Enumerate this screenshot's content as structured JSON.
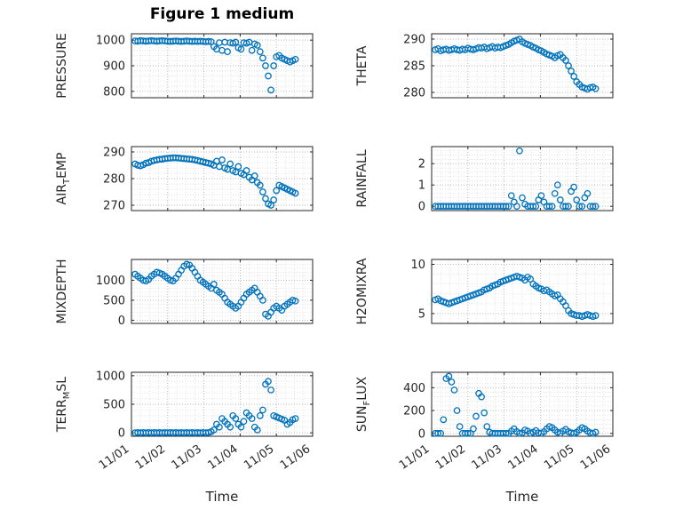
{
  "figure": {
    "title": "Figure 1 medium",
    "marker": "open-circle",
    "marker_color": "#0072BD",
    "axis_color": "#262626",
    "background": "#ffffff",
    "grid": "dotted"
  },
  "time_axis": {
    "label": "Time",
    "range": [
      0,
      5
    ],
    "ticks": [
      0,
      1,
      2,
      3,
      4,
      5
    ],
    "tick_labels": [
      "11/01",
      "11/02",
      "11/03",
      "11/04",
      "11/05",
      "11/06"
    ],
    "x": [
      0.1,
      0.175,
      0.25,
      0.325,
      0.4,
      0.475,
      0.55,
      0.625,
      0.7,
      0.775,
      0.85,
      0.925,
      1.0,
      1.075,
      1.15,
      1.225,
      1.3,
      1.375,
      1.45,
      1.525,
      1.6,
      1.675,
      1.75,
      1.825,
      1.9,
      1.975,
      2.05,
      2.125,
      2.2,
      2.275,
      2.35,
      2.425,
      2.5,
      2.575,
      2.65,
      2.725,
      2.8,
      2.875,
      2.95,
      3.025,
      3.1,
      3.175,
      3.25,
      3.325,
      3.4,
      3.475,
      3.55,
      3.625,
      3.7,
      3.775,
      3.85,
      3.925,
      4.0,
      4.075,
      4.15,
      4.225,
      4.3,
      4.375,
      4.45,
      4.525
    ]
  },
  "chart_data": [
    {
      "type": "scatter",
      "name": "PRESSURE",
      "ylabel": "PRESSURE",
      "ylabel_parts": [
        {
          "text": "PRESSURE"
        }
      ],
      "yticks": [
        800,
        900,
        1000
      ],
      "ylim": [
        775,
        1025
      ],
      "values": [
        997,
        996,
        998,
        997,
        996,
        997,
        998,
        997,
        996,
        997,
        998,
        997,
        996,
        995,
        996,
        997,
        996,
        995,
        996,
        997,
        996,
        995,
        996,
        995,
        996,
        995,
        994,
        995,
        994,
        975,
        965,
        990,
        960,
        992,
        955,
        990,
        988,
        992,
        970,
        965,
        990,
        988,
        992,
        960,
        985,
        980,
        955,
        930,
        900,
        860,
        805,
        900,
        935,
        940,
        930,
        925,
        920,
        915,
        920,
        925
      ]
    },
    {
      "type": "scatter",
      "name": "THETA",
      "ylabel": "THETA",
      "ylabel_parts": [
        {
          "text": "THETA"
        }
      ],
      "yticks": [
        280,
        285,
        290
      ],
      "ylim": [
        279,
        291
      ],
      "values": [
        288,
        288.2,
        287.8,
        288,
        288.1,
        287.9,
        288,
        288.2,
        288,
        287.9,
        288.1,
        288,
        288.3,
        288.1,
        288,
        288.2,
        288.4,
        288.3,
        288.5,
        288.2,
        288.4,
        288.6,
        288.3,
        288.5,
        288.4,
        288.6,
        288.8,
        289,
        289.3,
        289.6,
        289.8,
        290,
        289.5,
        289.2,
        289,
        288.8,
        288.5,
        288.3,
        288,
        287.8,
        287.5,
        287.2,
        287,
        286.8,
        286.5,
        286.9,
        287.1,
        286.5,
        286,
        285,
        284,
        283,
        282,
        281.5,
        281,
        280.8,
        280.6,
        280.9,
        281,
        280.7
      ]
    },
    {
      "type": "scatter",
      "name": "AIR_TEMP",
      "ylabel": "AIR_TEMP",
      "ylabel_parts": [
        {
          "text": "AIR"
        },
        {
          "text": "T",
          "sub": true
        },
        {
          "text": "EMP"
        }
      ],
      "yticks": [
        270,
        280,
        290
      ],
      "ylim": [
        268,
        292
      ],
      "values": [
        285.5,
        285,
        284.8,
        285.2,
        285.8,
        286,
        286.5,
        286.8,
        287,
        287.2,
        287.3,
        287.5,
        287.6,
        287.7,
        287.8,
        287.8,
        287.7,
        287.6,
        287.5,
        287.4,
        287.3,
        287.2,
        287,
        286.8,
        286.5,
        286.3,
        286,
        285.8,
        285.5,
        285,
        286.5,
        284.5,
        287,
        284,
        283.5,
        285.5,
        283,
        282.5,
        284.5,
        282,
        281.5,
        283,
        280.5,
        279.5,
        281,
        278.5,
        277.5,
        275,
        272.5,
        270.5,
        270,
        272,
        275.5,
        277.5,
        277,
        276.5,
        276,
        275.5,
        275,
        274.5
      ]
    },
    {
      "type": "scatter",
      "name": "RAINFALL",
      "ylabel": "RAINFALL",
      "ylabel_parts": [
        {
          "text": "RAINFALL"
        }
      ],
      "yticks": [
        0,
        1,
        2
      ],
      "ylim": [
        -0.2,
        2.8
      ],
      "values": [
        0,
        0,
        0,
        0,
        0,
        0,
        0,
        0,
        0,
        0,
        0,
        0,
        0,
        0,
        0,
        0,
        0,
        0,
        0,
        0,
        0,
        0,
        0,
        0,
        0,
        0,
        0,
        0,
        0.5,
        0.2,
        0,
        2.6,
        0.4,
        0.1,
        0,
        0,
        0,
        0,
        0.3,
        0.5,
        0.2,
        0,
        0,
        0,
        0.6,
        1,
        0.3,
        0,
        0,
        0,
        0.7,
        0.9,
        0.3,
        0,
        0,
        0.4,
        0.6,
        0,
        0,
        0
      ]
    },
    {
      "type": "scatter",
      "name": "MIXDEPTH",
      "ylabel": "MIXDEPTH",
      "ylabel_parts": [
        {
          "text": "MIXDEPTH"
        }
      ],
      "yticks": [
        0,
        500,
        1000
      ],
      "ylim": [
        -80,
        1520
      ],
      "values": [
        1150,
        1100,
        1050,
        1000,
        980,
        1020,
        1100,
        1150,
        1200,
        1180,
        1150,
        1100,
        1050,
        1000,
        980,
        1050,
        1150,
        1250,
        1350,
        1400,
        1380,
        1300,
        1200,
        1100,
        1000,
        950,
        900,
        850,
        800,
        900,
        750,
        700,
        650,
        550,
        450,
        400,
        350,
        300,
        350,
        450,
        550,
        650,
        700,
        750,
        800,
        700,
        600,
        500,
        150,
        100,
        200,
        300,
        350,
        300,
        250,
        350,
        400,
        450,
        500,
        480
      ]
    },
    {
      "type": "scatter",
      "name": "H2OMIXRA",
      "ylabel": "H2OMIXRA",
      "ylabel_parts": [
        {
          "text": "H2OMIXRA"
        }
      ],
      "yticks": [
        5,
        10
      ],
      "ylim": [
        4,
        10.5
      ],
      "values": [
        6.4,
        6.5,
        6.3,
        6.2,
        6.1,
        6,
        6.1,
        6.2,
        6.3,
        6.4,
        6.5,
        6.6,
        6.7,
        6.8,
        6.9,
        7,
        7.1,
        7.2,
        7.4,
        7.5,
        7.6,
        7.8,
        7.9,
        8,
        8.2,
        8.3,
        8.4,
        8.5,
        8.6,
        8.7,
        8.8,
        8.7,
        8.6,
        8.4,
        8.7,
        8.5,
        8,
        7.8,
        7.6,
        7.5,
        7.3,
        7.4,
        7.2,
        7,
        6.8,
        6.9,
        6.5,
        6.2,
        5.8,
        5.3,
        5,
        4.9,
        4.8,
        4.8,
        4.7,
        4.8,
        4.9,
        4.8,
        4.7,
        4.8
      ]
    },
    {
      "type": "scatter",
      "name": "TERR_MSL",
      "ylabel": "TERR_MSL",
      "ylabel_parts": [
        {
          "text": "TERR"
        },
        {
          "text": "M",
          "sub": true
        },
        {
          "text": "SL"
        }
      ],
      "yticks": [
        0,
        500,
        1000
      ],
      "ylim": [
        -60,
        1060
      ],
      "values": [
        0,
        5,
        0,
        5,
        0,
        5,
        0,
        5,
        0,
        5,
        0,
        5,
        0,
        5,
        0,
        5,
        0,
        5,
        0,
        5,
        0,
        5,
        0,
        5,
        0,
        5,
        0,
        5,
        20,
        50,
        150,
        100,
        250,
        200,
        150,
        100,
        300,
        250,
        150,
        100,
        200,
        350,
        300,
        250,
        100,
        50,
        300,
        400,
        850,
        900,
        750,
        300,
        280,
        260,
        240,
        220,
        150,
        180,
        230,
        250
      ]
    },
    {
      "type": "scatter",
      "name": "SUN_FLUX",
      "ylabel": "SUN_FLUX",
      "ylabel_parts": [
        {
          "text": "SUN"
        },
        {
          "text": "F",
          "sub": true
        },
        {
          "text": "LUX"
        }
      ],
      "yticks": [
        0,
        200,
        400
      ],
      "ylim": [
        -25,
        535
      ],
      "values": [
        0,
        0,
        0,
        120,
        480,
        500,
        450,
        380,
        200,
        60,
        0,
        0,
        0,
        0,
        40,
        150,
        350,
        320,
        180,
        60,
        10,
        0,
        0,
        0,
        0,
        0,
        0,
        0,
        20,
        40,
        15,
        0,
        5,
        30,
        20,
        0,
        10,
        25,
        5,
        0,
        15,
        40,
        60,
        50,
        30,
        10,
        0,
        20,
        35,
        15,
        5,
        0,
        10,
        30,
        50,
        40,
        20,
        5,
        0,
        10
      ]
    }
  ]
}
